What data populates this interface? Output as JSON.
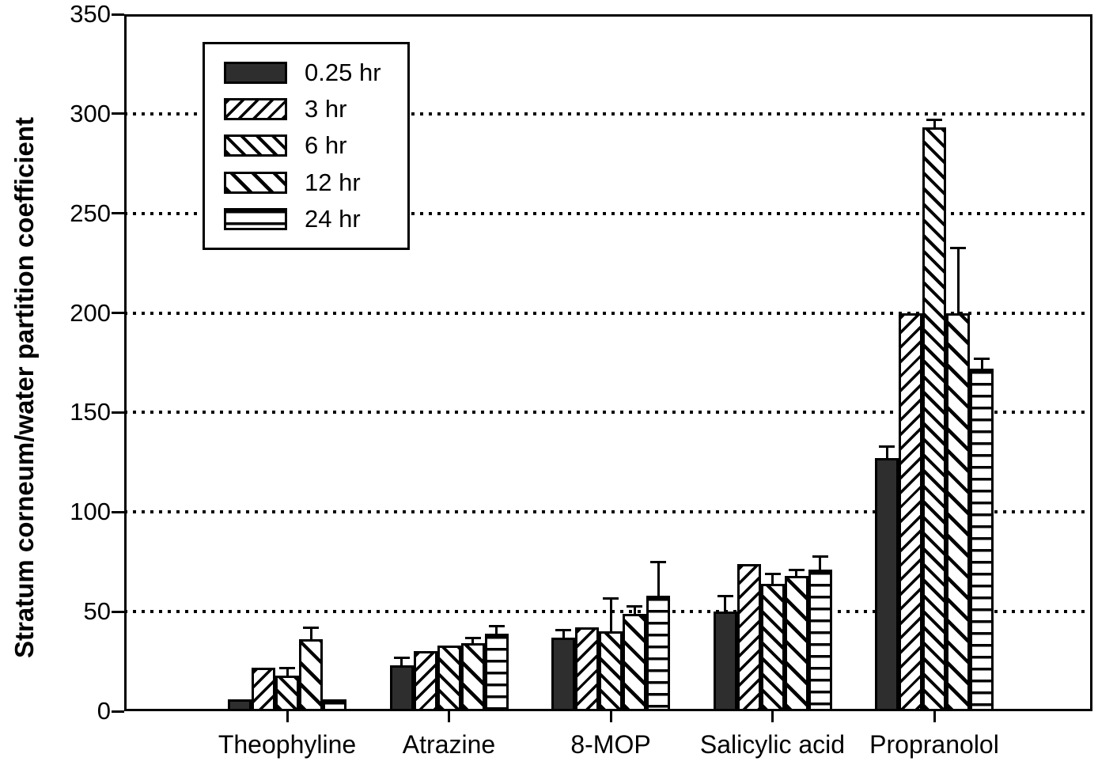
{
  "figure": {
    "background": "#ffffff",
    "foreground": "#000000",
    "solid_bar_fill": "#2e2e2e"
  },
  "chart_data": {
    "type": "bar",
    "title": "",
    "xlabel": "",
    "ylabel": "Stratum corneum/water partition coefficient",
    "ylim": [
      0,
      350
    ],
    "yticks": [
      0,
      50,
      100,
      150,
      200,
      250,
      300,
      350
    ],
    "grid": {
      "horizontal": true,
      "style": "dotted",
      "values": [
        50,
        100,
        150,
        200,
        250,
        300
      ]
    },
    "legend": {
      "position": "upper-left",
      "labels": [
        "0.25 hr",
        "3 hr",
        "6 hr",
        "12 hr",
        "24 hr"
      ]
    },
    "categories": [
      "Theophyline",
      "Atrazine",
      "8-MOP",
      "Salicylic acid",
      "Propranolol"
    ],
    "series": [
      {
        "name": "0.25 hr",
        "pattern": "solid",
        "values": [
          6,
          23,
          37,
          50,
          127
        ],
        "error_tops": [
          null,
          27,
          41,
          58,
          133
        ]
      },
      {
        "name": "3 hr",
        "pattern": "diagonal-forward",
        "values": [
          22,
          30,
          42,
          74,
          200
        ],
        "error_tops": [
          null,
          null,
          null,
          null,
          null
        ]
      },
      {
        "name": "6 hr",
        "pattern": "diagonal-back",
        "values": [
          18,
          33,
          40,
          64,
          293
        ],
        "error_tops": [
          22,
          null,
          57,
          69,
          297
        ]
      },
      {
        "name": "12 hr",
        "pattern": "diagonal-back-wide",
        "values": [
          36,
          34,
          49,
          68,
          200
        ],
        "error_tops": [
          42,
          37,
          53,
          71,
          233
        ]
      },
      {
        "name": "24 hr",
        "pattern": "horizontal",
        "values": [
          6,
          39,
          58,
          71,
          172
        ],
        "error_tops": [
          null,
          43,
          75,
          78,
          177
        ]
      }
    ]
  }
}
